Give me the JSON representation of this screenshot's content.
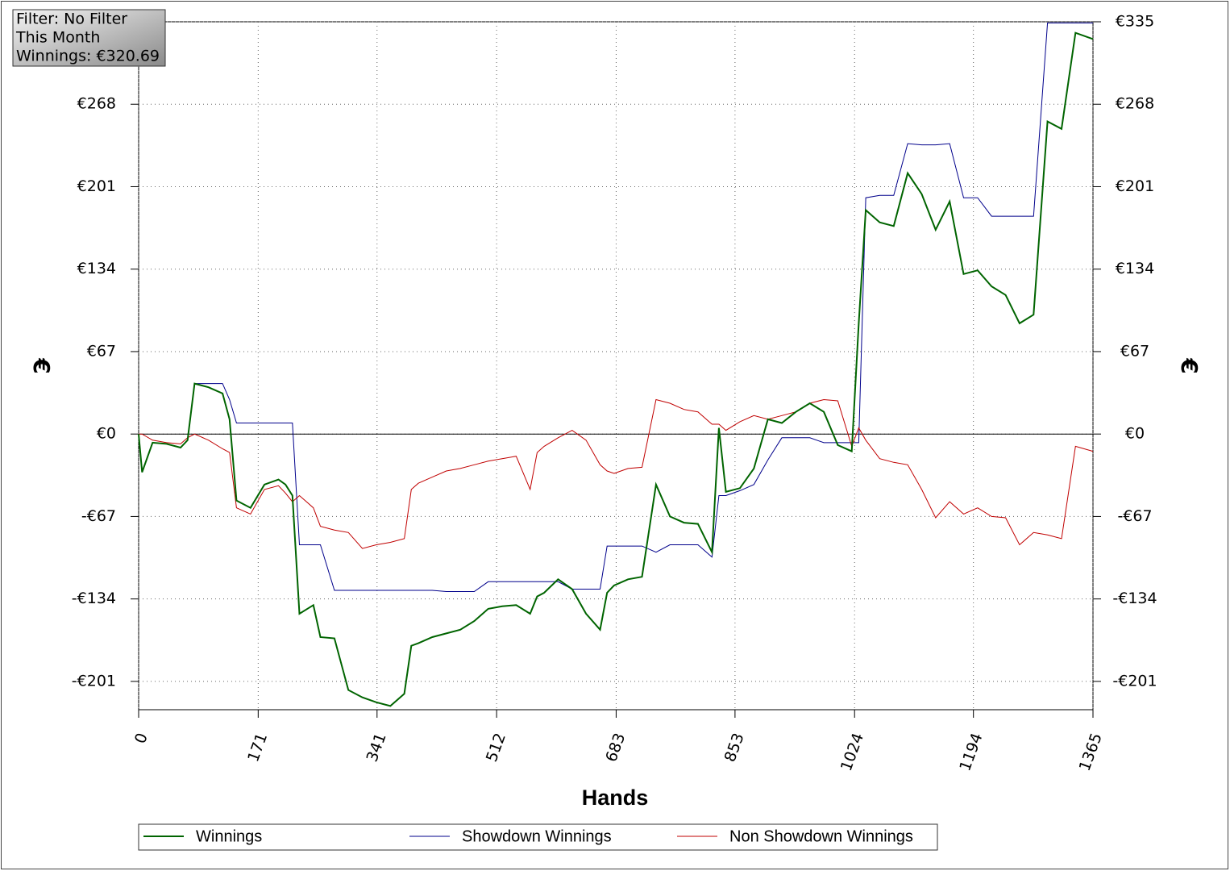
{
  "chart_data": {
    "type": "line",
    "info": [
      "Filter: No Filter",
      "This Month",
      "Winnings: €320.69"
    ],
    "xlabel": "Hands",
    "ylabel": "€",
    "x": [
      0,
      5,
      20,
      40,
      60,
      70,
      80,
      100,
      120,
      130,
      140,
      160,
      180,
      200,
      210,
      220,
      230,
      250,
      260,
      280,
      300,
      320,
      340,
      360,
      380,
      390,
      400,
      420,
      440,
      460,
      480,
      500,
      520,
      540,
      560,
      570,
      580,
      600,
      620,
      640,
      660,
      670,
      680,
      700,
      720,
      740,
      760,
      780,
      800,
      820,
      830,
      840,
      860,
      880,
      900,
      920,
      940,
      960,
      980,
      1000,
      1020,
      1030,
      1040,
      1060,
      1080,
      1100,
      1120,
      1140,
      1160,
      1180,
      1200,
      1220,
      1240,
      1260,
      1280,
      1300,
      1320,
      1340,
      1365
    ],
    "series": [
      {
        "name": "Winnings",
        "color": "#006400",
        "values": [
          0,
          -31,
          -7,
          -8,
          -11,
          -5,
          41,
          38,
          33,
          12,
          -54,
          -60,
          -41,
          -37,
          -41,
          -50,
          -146,
          -139,
          -165,
          -166,
          -208,
          -214,
          -218,
          -221,
          -211,
          -172,
          -170,
          -165,
          -162,
          -159,
          -152,
          -142,
          -140,
          -139,
          -146,
          -132,
          -129,
          -118,
          -126,
          -146,
          -159,
          -129,
          -123,
          -118,
          -116,
          -41,
          -67,
          -72,
          -73,
          -96,
          5,
          -47,
          -44,
          -28,
          12,
          9,
          18,
          25,
          18,
          -9,
          -14,
          90,
          182,
          172,
          169,
          212,
          195,
          166,
          189,
          130,
          133,
          120,
          113,
          90,
          97,
          254,
          248,
          326,
          321
        ]
      },
      {
        "name": "Showdown Winnings",
        "color": "#00008b",
        "values": [
          0,
          -31,
          -7,
          -8,
          -11,
          -5,
          41,
          41,
          41,
          28,
          9,
          9,
          9,
          9,
          9,
          9,
          -90,
          -90,
          -90,
          -127,
          -127,
          -127,
          -127,
          -127,
          -127,
          -127,
          -127,
          -127,
          -128,
          -128,
          -128,
          -120,
          -120,
          -120,
          -120,
          -120,
          -120,
          -120,
          -126,
          -126,
          -126,
          -91,
          -91,
          -91,
          -91,
          -96,
          -90,
          -90,
          -90,
          -100,
          -50,
          -50,
          -46,
          -41,
          -21,
          -3,
          -3,
          -3,
          -7,
          -7,
          -7,
          -7,
          192,
          194,
          194,
          236,
          235,
          235,
          236,
          192,
          192,
          177,
          177,
          177,
          177,
          334,
          334,
          334,
          334
        ]
      },
      {
        "name": "Non Showdown Winnings",
        "color": "#c00000",
        "values": [
          0,
          0,
          -5,
          -7,
          -8,
          -3,
          0,
          -5,
          -12,
          -15,
          -60,
          -65,
          -45,
          -42,
          -48,
          -55,
          -50,
          -60,
          -75,
          -78,
          -80,
          -93,
          -90,
          -88,
          -85,
          -45,
          -40,
          -35,
          -30,
          -28,
          -25,
          -22,
          -20,
          -18,
          -45,
          -15,
          -10,
          -3,
          3,
          -5,
          -25,
          -30,
          -32,
          -28,
          -27,
          28,
          25,
          20,
          18,
          8,
          8,
          3,
          10,
          15,
          12,
          15,
          18,
          25,
          28,
          27,
          -10,
          5,
          -5,
          -20,
          -23,
          -25,
          -45,
          -68,
          -55,
          -65,
          -60,
          -67,
          -68,
          -90,
          -80,
          -82,
          -85,
          -10,
          -14
        ]
      }
    ],
    "xlim": [
      0,
      1365
    ],
    "xticks": [
      0,
      171,
      341,
      512,
      683,
      853,
      1024,
      1194,
      1365
    ],
    "ylim": [
      -224,
      335
    ],
    "yticks": [
      {
        "value": -201,
        "label": "-€201"
      },
      {
        "value": -134,
        "label": "-€134"
      },
      {
        "value": -67,
        "label": "-€67"
      },
      {
        "value": 0,
        "label": "€0"
      },
      {
        "value": 67,
        "label": "€67"
      },
      {
        "value": 134,
        "label": "€134"
      },
      {
        "value": 201,
        "label": "€201"
      },
      {
        "value": 268,
        "label": "€268"
      },
      {
        "value": 335,
        "label": "€335"
      }
    ],
    "grid": true
  }
}
